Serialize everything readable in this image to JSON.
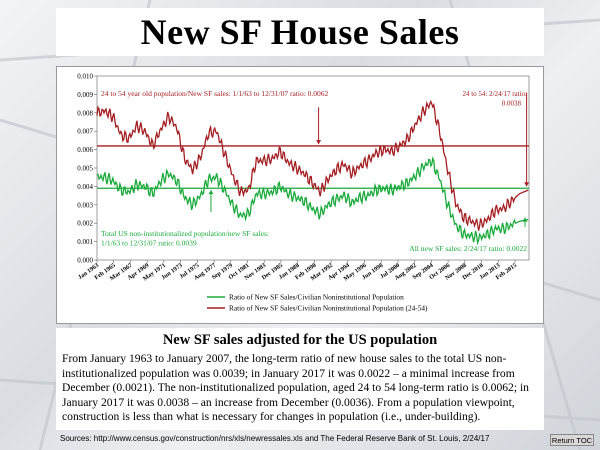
{
  "slide": {
    "title": "New SF House Sales",
    "subtitle": "New SF sales adjusted for the US population",
    "paragraph": "From January 1963 to January 2007, the long-term ratio of new house sales to the total US non-institutionalized population was 0.0039; in January 2017 it was 0.0022 – a minimal increase from December (0.0021). The non-institutionalized population, aged 24 to 54 long-term ratio is 0.0062; in January 2017 it was 0.0038 – an increase from December (0.0036).  From a population viewpoint, construction is less than what is necessary for changes in population (i.e., under-building).",
    "sources": "Sources: http://www.census.gov/construction/nrs/xls/newressales.xls and The Federal Reserve Bank of St. Louis, 2/24/17",
    "return_toc": "Return TOC"
  },
  "chart_data": {
    "type": "line",
    "ylim": [
      0,
      0.01
    ],
    "y_ticks": [
      "0.000",
      "0.001",
      "0.002",
      "0.003",
      "0.004",
      "0.005",
      "0.006",
      "0.007",
      "0.008",
      "0.009",
      "0.010"
    ],
    "x_ticks": [
      "Jan 1963",
      "Feb 1965",
      "Mar 1967",
      "Apr 1969",
      "May 1971",
      "Jun 1973",
      "Jul 1975",
      "Aug 1977",
      "Sep 1979",
      "Oct 1981",
      "Nov 1983",
      "Dec 1985",
      "Jan 1988",
      "Feb 1990",
      "Mar 1992",
      "Apr 1994",
      "May 1996",
      "Jun 1998",
      "Jul 2000",
      "Aug 2002",
      "Sep 2004",
      "Oct 2006",
      "Nov 2008",
      "Dec 2010",
      "Jan 2013",
      "Feb 2015"
    ],
    "colors": {
      "green": "#1aaa3c",
      "red": "#a31e22"
    },
    "series": [
      {
        "name": "Ratio of New SF Sales/Civilian Noninstitutional Population",
        "color": "#1aaa3c",
        "x": [
          1963,
          1964,
          1965,
          1966,
          1967,
          1968,
          1969,
          1970,
          1971,
          1972,
          1973,
          1974,
          1975,
          1976,
          1977,
          1978,
          1979,
          1980,
          1981,
          1982,
          1983,
          1984,
          1985,
          1986,
          1987,
          1988,
          1989,
          1990,
          1991,
          1992,
          1993,
          1994,
          1995,
          1996,
          1997,
          1998,
          1999,
          2000,
          2001,
          2002,
          2003,
          2004,
          2005,
          2006,
          2007,
          2008,
          2009,
          2010,
          2011,
          2012,
          2013,
          2014,
          2015,
          2016,
          2017.1
        ],
        "values": [
          0.0045,
          0.0045,
          0.0043,
          0.0038,
          0.0037,
          0.0041,
          0.004,
          0.0036,
          0.0043,
          0.0047,
          0.0043,
          0.0034,
          0.003,
          0.0035,
          0.0044,
          0.0045,
          0.0038,
          0.003,
          0.0024,
          0.0025,
          0.0036,
          0.0036,
          0.0037,
          0.004,
          0.0036,
          0.0034,
          0.0032,
          0.0028,
          0.0025,
          0.003,
          0.0033,
          0.0035,
          0.0031,
          0.0034,
          0.0035,
          0.0038,
          0.0039,
          0.0038,
          0.004,
          0.0042,
          0.0046,
          0.0051,
          0.0054,
          0.0044,
          0.003,
          0.0019,
          0.0014,
          0.0013,
          0.0012,
          0.0014,
          0.0017,
          0.0017,
          0.0019,
          0.0021,
          0.0022
        ]
      },
      {
        "name": "Ratio of New SF Sales/Civilian Noninstitutional Population (24-54)",
        "color": "#a31e22",
        "x": [
          1963,
          1964,
          1965,
          1966,
          1967,
          1968,
          1969,
          1970,
          1971,
          1972,
          1973,
          1974,
          1975,
          1976,
          1977,
          1978,
          1979,
          1980,
          1981,
          1982,
          1983,
          1984,
          1985,
          1986,
          1987,
          1988,
          1989,
          1990,
          1991,
          1992,
          1993,
          1994,
          1995,
          1996,
          1997,
          1998,
          1999,
          2000,
          2001,
          2002,
          2003,
          2004,
          2005,
          2006,
          2007,
          2008,
          2009,
          2010,
          2011,
          2012,
          2013,
          2014,
          2015,
          2016,
          2017.1
        ],
        "values": [
          0.008,
          0.0081,
          0.0078,
          0.0068,
          0.0066,
          0.0073,
          0.007,
          0.0062,
          0.0071,
          0.0078,
          0.0072,
          0.0055,
          0.0049,
          0.0056,
          0.0069,
          0.007,
          0.0058,
          0.0046,
          0.0037,
          0.0038,
          0.0054,
          0.0054,
          0.0055,
          0.0059,
          0.0053,
          0.005,
          0.0047,
          0.0042,
          0.0037,
          0.0044,
          0.0049,
          0.0052,
          0.0047,
          0.0051,
          0.0054,
          0.0058,
          0.006,
          0.0059,
          0.0062,
          0.0066,
          0.0074,
          0.0081,
          0.0086,
          0.007,
          0.0049,
          0.0031,
          0.0023,
          0.0021,
          0.0019,
          0.0022,
          0.0027,
          0.0028,
          0.0032,
          0.0036,
          0.0038
        ]
      }
    ],
    "reference_lines": [
      {
        "color": "#a31e22",
        "value": 0.0062
      },
      {
        "color": "#1aaa3c",
        "value": 0.0039
      }
    ],
    "annotations": {
      "red_ratio": "24 to 54 year old population/New SF sales: 1/1/63 to 12/31/07 ratio: 0.0062",
      "red_current_1": "24 to 54: 2/24/17 ratio:",
      "red_current_2": "0.0038",
      "green_ratio_1": "Total US non-institutionalized population/new SF sales:",
      "green_ratio_2": "1/1/63 to 12/31/07 ratio: 0.0039",
      "green_current": "All new SF sales: 2/24/17 ratio: 0.0022"
    },
    "legend_position": "bottom"
  }
}
